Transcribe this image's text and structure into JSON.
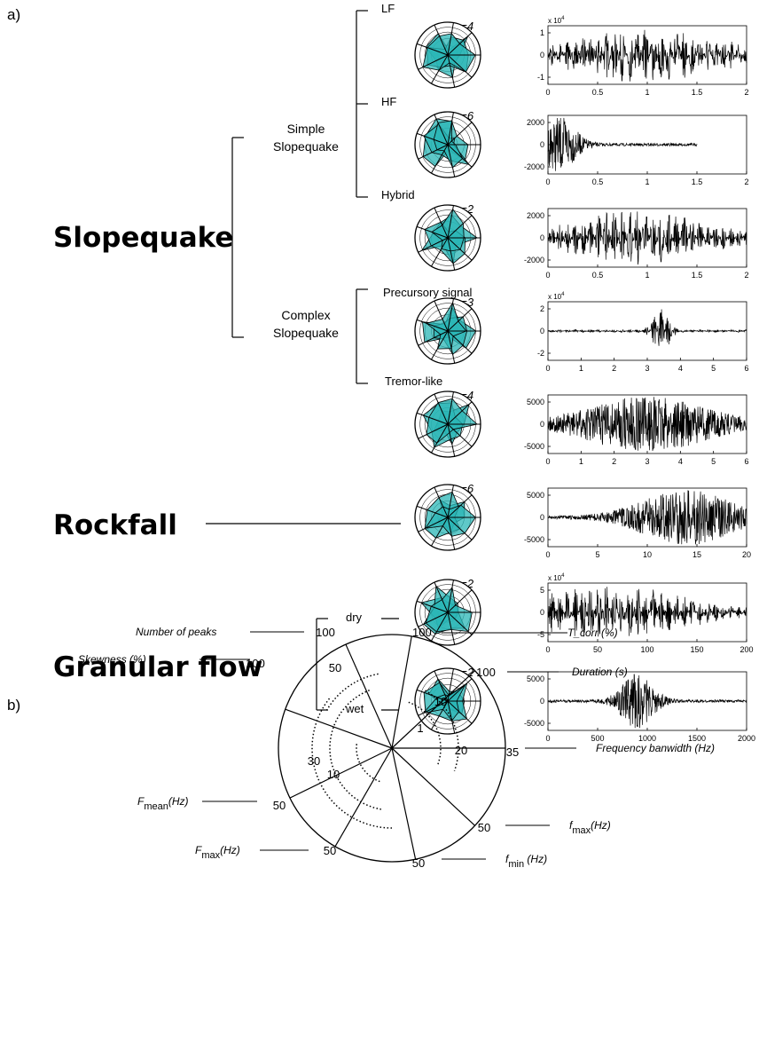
{
  "panel_a": {
    "label": "a)",
    "groups": [
      {
        "label": "Slopequake"
      },
      {
        "label": "Rockfall"
      },
      {
        "label": "Granular flow"
      }
    ],
    "subgroups": [
      {
        "lines": [
          "Simple",
          "Slopequake"
        ]
      },
      {
        "lines": [
          "Complex",
          "Slopequake"
        ]
      }
    ],
    "rows": [
      {
        "label": "LF",
        "n": "n=4",
        "x_ticks": [
          "0",
          "0.5",
          "1",
          "1.5",
          "2"
        ],
        "y_ticks": [
          "1",
          "0",
          "-1"
        ],
        "scale": [
          "x 10",
          "4"
        ]
      },
      {
        "label": "HF",
        "n": "n=6",
        "x_ticks": [
          "0",
          "0.5",
          "1",
          "1.5",
          "2"
        ],
        "y_ticks": [
          "2000",
          "0",
          "-2000"
        ]
      },
      {
        "label": "Hybrid",
        "n": "n=2",
        "x_ticks": [
          "0",
          "0.5",
          "1",
          "1.5",
          "2"
        ],
        "y_ticks": [
          "2000",
          "0",
          "-2000"
        ]
      },
      {
        "label": "Precursory signal",
        "n": "n=3",
        "x_ticks": [
          "0",
          "1",
          "2",
          "3",
          "4",
          "5",
          "6"
        ],
        "y_ticks": [
          "2",
          "0",
          "-2"
        ],
        "scale": [
          "x 10",
          "4"
        ]
      },
      {
        "label": "Tremor-like",
        "n": "n=4",
        "x_ticks": [
          "0",
          "1",
          "2",
          "3",
          "4",
          "5",
          "6"
        ],
        "y_ticks": [
          "5000",
          "0",
          "-5000"
        ]
      },
      {
        "n": "n=6",
        "x_ticks": [
          "0",
          "5",
          "10",
          "15",
          "20"
        ],
        "y_ticks": [
          "5000",
          "0",
          "-5000"
        ]
      },
      {
        "label": "dry",
        "n": "n=2",
        "x_ticks": [
          "0",
          "50",
          "100",
          "150",
          "200"
        ],
        "y_ticks": [
          "5",
          "0",
          "-5"
        ],
        "scale": [
          "x 10",
          "4"
        ]
      },
      {
        "label": "wet",
        "n": "n=2",
        "x_ticks": [
          "0",
          "500",
          "1000",
          "1500",
          "2000"
        ],
        "y_ticks": [
          "5000",
          "0",
          "-5000"
        ]
      }
    ]
  },
  "panel_b": {
    "label": "b)",
    "axes": [
      {
        "name": [
          "T_corr (%)"
        ],
        "max": "100"
      },
      {
        "name": [
          "Duration (s)"
        ],
        "max": "100"
      },
      {
        "name": [
          "Frequency banwidth (Hz)"
        ],
        "max": "35"
      },
      {
        "name": [
          "f",
          "max",
          "(Hz)"
        ],
        "max": "50"
      },
      {
        "name": [
          "f",
          "min",
          " (Hz)"
        ],
        "max": "50"
      },
      {
        "name": [
          "F",
          "max",
          "(Hz)"
        ],
        "max": "50"
      },
      {
        "name": [
          "F",
          "mean",
          "(Hz)"
        ],
        "max": "50"
      },
      {
        "name": [
          "Skewness (%)"
        ],
        "max": "100"
      },
      {
        "name": [
          "Number of peaks"
        ],
        "max": "100"
      }
    ],
    "inner_labels": [
      "10",
      "1",
      "20",
      "50",
      "30",
      "10"
    ]
  }
}
